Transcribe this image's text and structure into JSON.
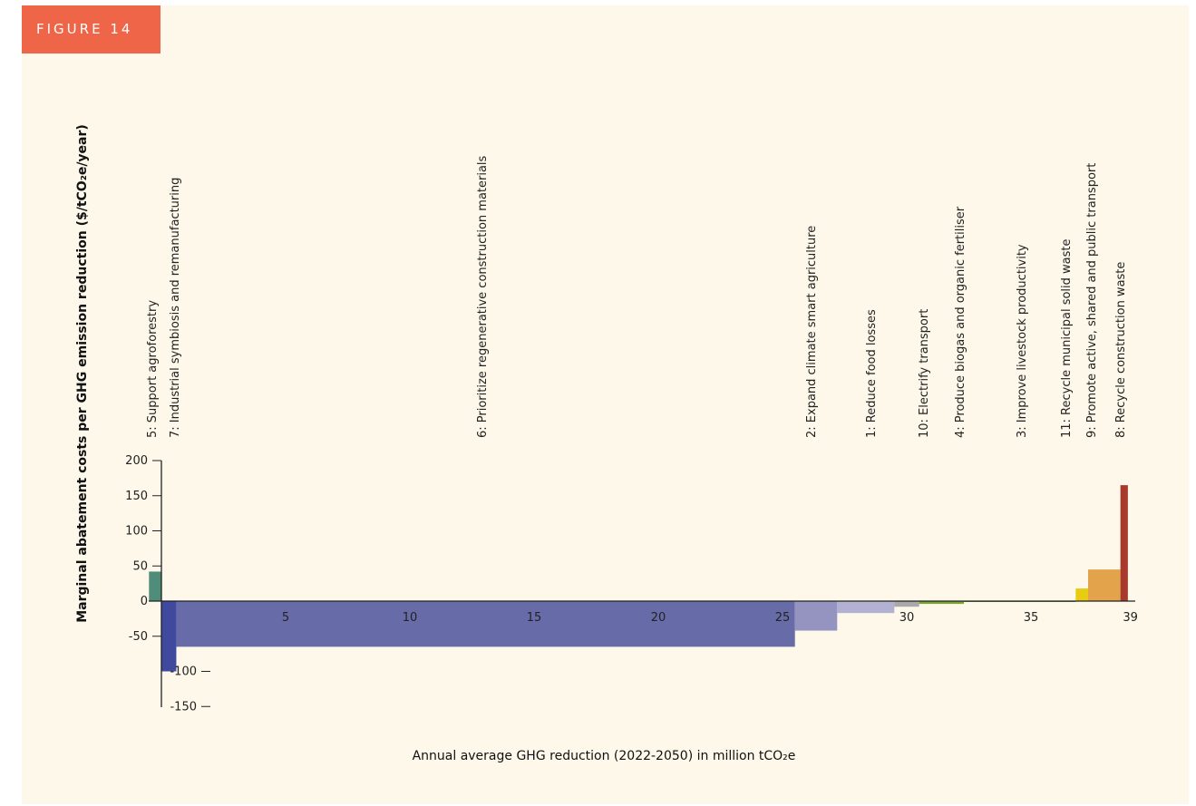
{
  "figure_label": "FIGURE 14",
  "chart_data": {
    "type": "bar",
    "variable_width": true,
    "xlabel": "Annual average GHG reduction (2022-2050) in million tCO₂e",
    "ylabel": "Marginal abatement costs per GHG emission reduction ($/tCO₂e/year)",
    "xlim": [
      -0.5,
      39.5
    ],
    "ylim": [
      -150,
      200
    ],
    "x_ticks": [
      5,
      10,
      15,
      20,
      25,
      30,
      35,
      39
    ],
    "y_ticks": [
      200,
      150,
      100,
      50,
      0,
      -50,
      -100,
      -150
    ],
    "bars": [
      {
        "label": "5: Support agroforestry",
        "x_start": -0.5,
        "x_end": 0.0,
        "value": 42,
        "color": "#4f8c79"
      },
      {
        "label": "7: Industrial symbiosis and remanufacturing",
        "x_start": 0.0,
        "x_end": 0.6,
        "value": -100,
        "color": "#3f4a9e"
      },
      {
        "label": "6: Prioritize regenerative construction materials",
        "x_start": 0.6,
        "x_end": 25.5,
        "value": -65,
        "color": "#676ca8"
      },
      {
        "label": "2: Expand climate smart agriculture",
        "x_start": 25.5,
        "x_end": 27.2,
        "value": -42,
        "color": "#9593c0"
      },
      {
        "label": "1: Reduce food losses",
        "x_start": 27.2,
        "x_end": 29.5,
        "value": -17,
        "color": "#b2b1d1"
      },
      {
        "label": "10: Electrify transport",
        "x_start": 29.5,
        "x_end": 30.5,
        "value": -8,
        "color": "#a9a9a9"
      },
      {
        "label": "4: Produce biogas and organic fertiliser",
        "x_start": 30.5,
        "x_end": 32.3,
        "value": -4,
        "color": "#7aa33a"
      },
      {
        "label": "3: Improve livestock productivity",
        "x_start": 32.3,
        "x_end": 36.8,
        "value": -1,
        "color": "#6e8a40"
      },
      {
        "label": "11: Recycle municipal solid waste",
        "x_start": 36.8,
        "x_end": 37.3,
        "value": 18,
        "color": "#e7cc12"
      },
      {
        "label": "9: Promote active, shared and public transport",
        "x_start": 37.3,
        "x_end": 38.6,
        "value": 45,
        "color": "#e3a34a"
      },
      {
        "label": "8: Recycle construction waste",
        "x_start": 38.6,
        "x_end": 38.9,
        "value": 165,
        "color": "#a83a2c"
      }
    ]
  }
}
